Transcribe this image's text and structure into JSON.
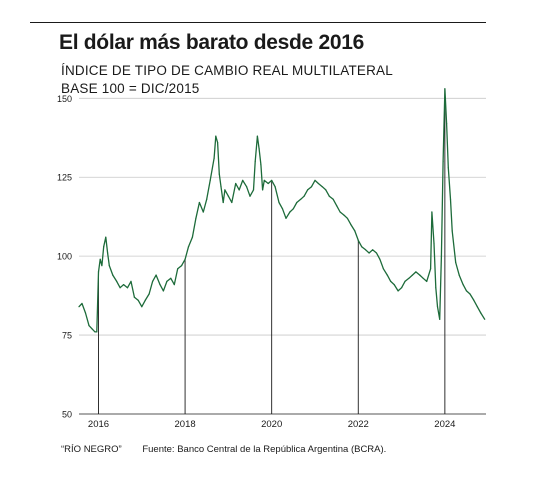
{
  "title": "El dólar más barato desde 2016",
  "subtitle_line1": "ÍNDICE DE TIPO DE CAMBIO REAL MULTILATERAL",
  "subtitle_line2": "BASE 100 = DIC/2015",
  "footer": {
    "credit": "“RÍO NEGRO”",
    "source": "Fuente: Banco Central de la República Argentina (BCRA)."
  },
  "colors": {
    "line": "#1d6b3a",
    "grid": "#c8c8c8",
    "text": "#1a1a1a"
  },
  "chart_data": {
    "type": "line",
    "title": "El dólar más barato desde 2016",
    "subtitle": "ÍNDICE DE TIPO DE CAMBIO REAL MULTILATERAL / BASE 100 = DIC/2015",
    "xlabel": "",
    "ylabel": "",
    "ylim": [
      50,
      152
    ],
    "xlim": [
      2015.55,
      2024.95
    ],
    "yticks": [
      50,
      75,
      100,
      125,
      150
    ],
    "xticks": [
      2016,
      2018,
      2020,
      2022,
      2024
    ],
    "xtick_labels": [
      "2016",
      "2018",
      "2020",
      "2022",
      "2024"
    ],
    "grid": "horizontal",
    "year_markers": [
      2016,
      2018,
      2020,
      2022,
      2024
    ],
    "series": [
      {
        "x": [
          2015.55,
          2015.62,
          2015.7,
          2015.78,
          2015.85,
          2015.92,
          2015.96,
          2016.0,
          2016.04,
          2016.08,
          2016.12,
          2016.17,
          2016.21,
          2016.25,
          2016.33,
          2016.42,
          2016.5,
          2016.58,
          2016.67,
          2016.75,
          2016.83,
          2016.92,
          2017.0,
          2017.08,
          2017.17,
          2017.25,
          2017.33,
          2017.42,
          2017.5,
          2017.58,
          2017.67,
          2017.75,
          2017.83,
          2017.92,
          2018.0,
          2018.08,
          2018.17,
          2018.25,
          2018.33,
          2018.42,
          2018.5,
          2018.58,
          2018.67,
          2018.71,
          2018.75,
          2018.79,
          2018.83,
          2018.88,
          2018.92,
          2019.0,
          2019.08,
          2019.17,
          2019.25,
          2019.33,
          2019.42,
          2019.5,
          2019.58,
          2019.62,
          2019.67,
          2019.71,
          2019.75,
          2019.79,
          2019.83,
          2019.92,
          2020.0,
          2020.08,
          2020.17,
          2020.25,
          2020.33,
          2020.42,
          2020.5,
          2020.58,
          2020.67,
          2020.75,
          2020.83,
          2020.92,
          2021.0,
          2021.08,
          2021.17,
          2021.25,
          2021.33,
          2021.42,
          2021.5,
          2021.58,
          2021.67,
          2021.75,
          2021.83,
          2021.92,
          2022.0,
          2022.08,
          2022.17,
          2022.25,
          2022.33,
          2022.42,
          2022.5,
          2022.58,
          2022.67,
          2022.75,
          2022.83,
          2022.92,
          2023.0,
          2023.08,
          2023.17,
          2023.25,
          2023.33,
          2023.42,
          2023.5,
          2023.58,
          2023.67,
          2023.7,
          2023.75,
          2023.79,
          2023.83,
          2023.88,
          2023.92,
          2023.96,
          2024.0,
          2024.04,
          2024.08,
          2024.13,
          2024.17,
          2024.25,
          2024.33,
          2024.42,
          2024.5,
          2024.58,
          2024.67,
          2024.75,
          2024.83,
          2024.92
        ],
        "values": [
          84,
          85,
          82,
          78,
          77,
          76,
          76,
          95,
          99,
          97,
          103,
          106,
          101,
          97,
          94,
          92,
          90,
          91,
          90,
          92,
          87,
          86,
          84,
          86,
          88,
          92,
          94,
          91,
          89,
          92,
          93,
          91,
          96,
          97,
          99,
          103,
          106,
          112,
          117,
          114,
          118,
          124,
          131,
          138,
          136,
          126,
          122,
          117,
          121,
          119,
          117,
          123,
          121,
          124,
          122,
          119,
          121,
          130,
          138,
          134,
          129,
          121,
          124,
          123,
          124,
          122,
          117,
          115,
          112,
          114,
          115,
          117,
          118,
          119,
          121,
          122,
          124,
          123,
          122,
          121,
          119,
          118,
          116,
          114,
          113,
          112,
          110,
          108,
          105,
          103,
          102,
          101,
          102,
          101,
          99,
          96,
          94,
          92,
          91,
          89,
          90,
          92,
          93,
          94,
          95,
          94,
          93,
          92,
          96,
          114,
          104,
          90,
          84,
          80,
          100,
          130,
          153,
          142,
          128,
          118,
          108,
          98,
          94,
          91,
          89,
          88,
          86,
          84,
          82,
          80
        ]
      }
    ]
  }
}
